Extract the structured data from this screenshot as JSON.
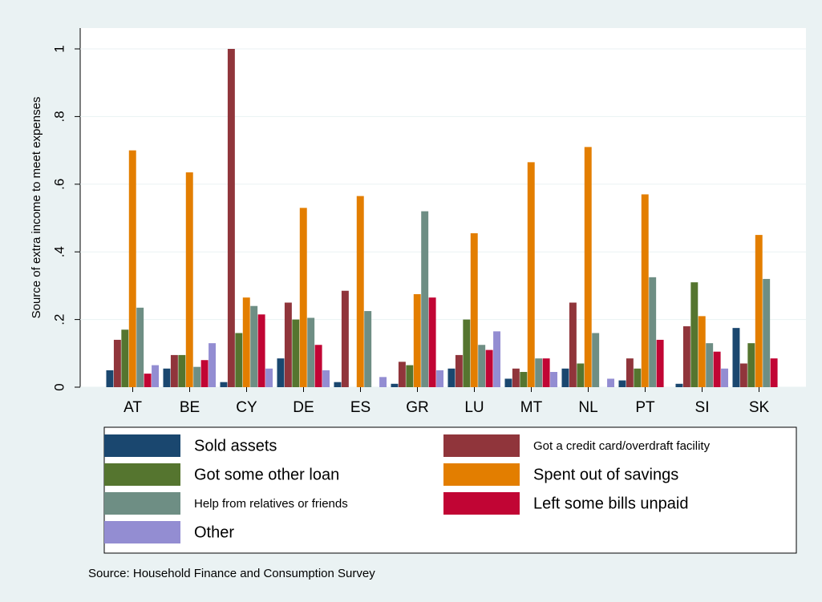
{
  "chart_data": {
    "type": "bar",
    "y_label": "Source of extra income to meet expenses",
    "source": "Source: Household Finance and Consumption Survey",
    "categories": [
      "AT",
      "BE",
      "CY",
      "DE",
      "ES",
      "GR",
      "LU",
      "MT",
      "NL",
      "PT",
      "SI",
      "SK"
    ],
    "series": [
      {
        "name": "Sold assets",
        "color": "#1a476f",
        "values": [
          0.05,
          0.055,
          0.015,
          0.085,
          0.015,
          0.01,
          0.055,
          0.025,
          0.055,
          0.02,
          0.01,
          0.175
        ]
      },
      {
        "name": "Got a credit card/overdraft facility",
        "color": "#90353b",
        "values": [
          0.14,
          0.095,
          1.0,
          0.25,
          0.285,
          0.075,
          0.095,
          0.055,
          0.25,
          0.085,
          0.18,
          0.07
        ]
      },
      {
        "name": "Got some other loan",
        "color": "#55752f",
        "values": [
          0.17,
          0.095,
          0.16,
          0.2,
          0,
          0.065,
          0.2,
          0.045,
          0.07,
          0.055,
          0.31,
          0.13
        ]
      },
      {
        "name": "Spent out of savings",
        "color": "#e37e00",
        "values": [
          0.7,
          0.635,
          0.265,
          0.53,
          0.565,
          0.275,
          0.455,
          0.665,
          0.71,
          0.57,
          0.21,
          0.45
        ]
      },
      {
        "name": "Help from relatives or friends",
        "color": "#6e8e84",
        "values": [
          0.235,
          0.06,
          0.24,
          0.205,
          0.225,
          0.52,
          0.125,
          0.085,
          0.16,
          0.325,
          0.13,
          0.32
        ]
      },
      {
        "name": "Left some bills unpaid",
        "color": "#c10534",
        "values": [
          0.04,
          0.08,
          0.215,
          0.125,
          0,
          0.265,
          0.11,
          0.085,
          0,
          0.14,
          0.105,
          0.085
        ]
      },
      {
        "name": "Other",
        "color": "#938dd2",
        "values": [
          0.065,
          0.13,
          0.055,
          0.05,
          0.03,
          0.05,
          0.165,
          0.045,
          0.025,
          0,
          0.055,
          0
        ]
      }
    ],
    "ylim": [
      0,
      1
    ],
    "yticks": [
      0,
      {
        "value": 0.2,
        "label": ".2"
      },
      {
        "value": 0.4,
        "label": ".4"
      },
      {
        "value": 0.6,
        "label": ".6"
      },
      {
        "value": 0.8,
        "label": ".8"
      },
      1
    ],
    "grid": true
  }
}
